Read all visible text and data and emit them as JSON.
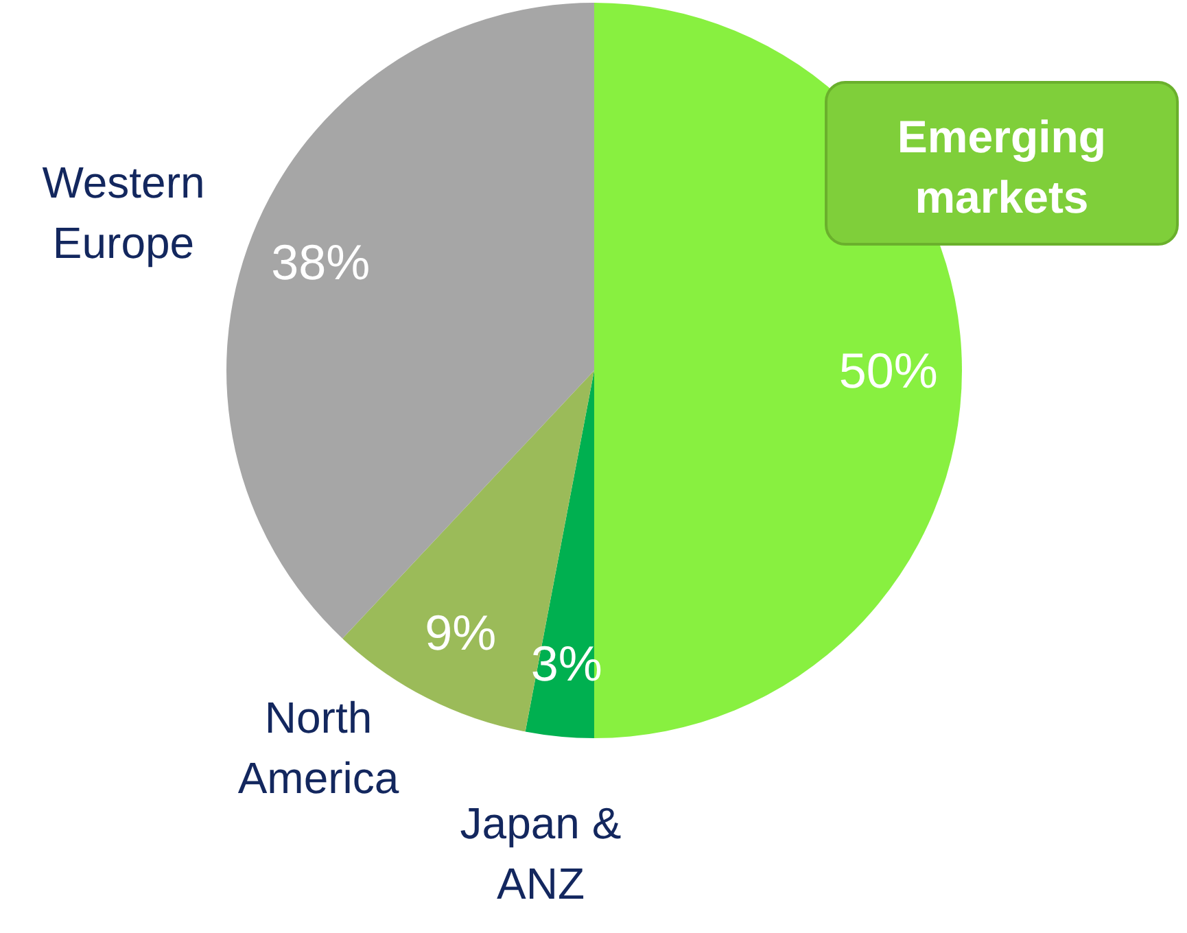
{
  "chart_data": {
    "type": "pie",
    "categories": [
      "Emerging markets",
      "Japan & ANZ",
      "North America",
      "Western Europe"
    ],
    "values": [
      50,
      3,
      9,
      38
    ],
    "colors": [
      "#88f040",
      "#00b050",
      "#9bbb59",
      "#a6a6a6"
    ],
    "value_labels": [
      "50%",
      "3%",
      "9%",
      "38%"
    ]
  }
}
